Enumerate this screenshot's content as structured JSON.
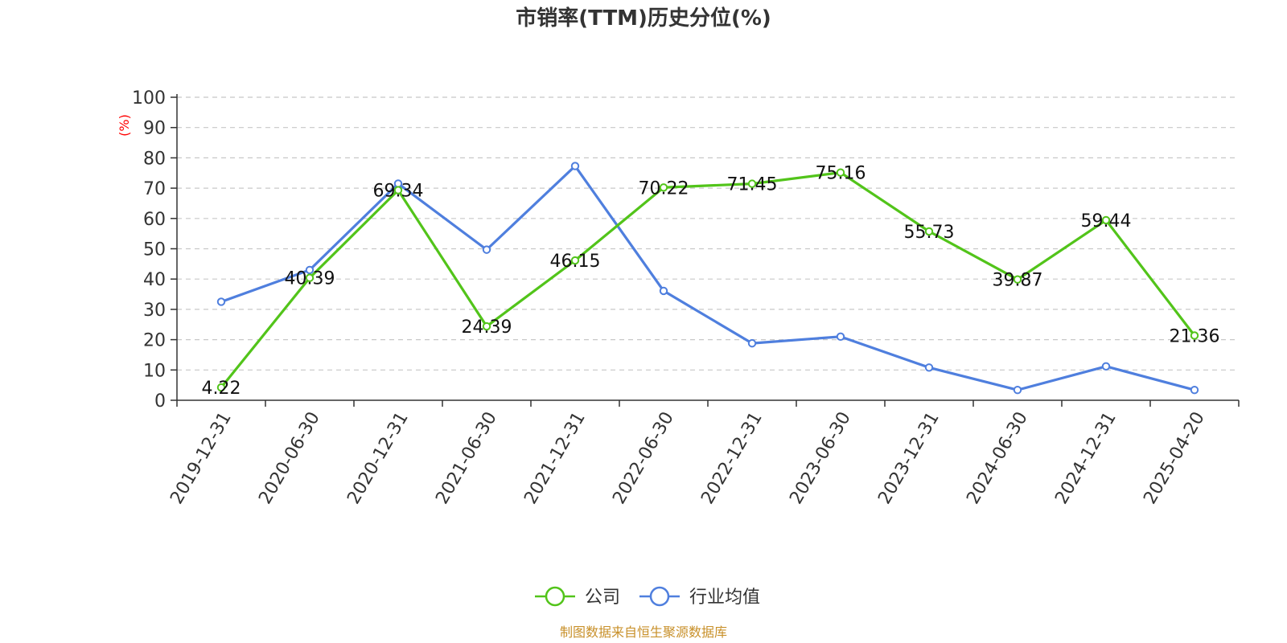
{
  "chart_data": {
    "type": "line",
    "title": "市销率(TTM)历史分位(%)",
    "ylabel": "(%)",
    "ylim": [
      0,
      100
    ],
    "yticks": [
      0,
      10,
      20,
      30,
      40,
      50,
      60,
      70,
      80,
      90,
      100
    ],
    "grid": true,
    "legend_position": "bottom",
    "categories": [
      "2019-12-31",
      "2020-06-30",
      "2020-12-31",
      "2021-06-30",
      "2021-12-31",
      "2022-06-30",
      "2022-12-31",
      "2023-06-30",
      "2023-12-31",
      "2024-06-30",
      "2024-12-31",
      "2025-04-20"
    ],
    "series": [
      {
        "name": "公司",
        "color": "#52c41a",
        "values": [
          4.22,
          40.39,
          69.34,
          24.39,
          46.15,
          70.22,
          71.45,
          75.16,
          55.73,
          39.87,
          59.44,
          21.36
        ],
        "labels": [
          "4.22",
          "40.39",
          "69.34",
          "24.39",
          "46.15",
          "70.22",
          "71.45",
          "75.16",
          "55.73",
          "39.87",
          "59.44",
          "21.36"
        ]
      },
      {
        "name": "行业均值",
        "color": "#4f7fde",
        "values": [
          32.5,
          43,
          71.5,
          49.7,
          77.3,
          36.1,
          18.8,
          21.0,
          10.8,
          3.4,
          11.2,
          3.4
        ]
      }
    ]
  },
  "source": "制图数据来自恒生聚源数据库"
}
